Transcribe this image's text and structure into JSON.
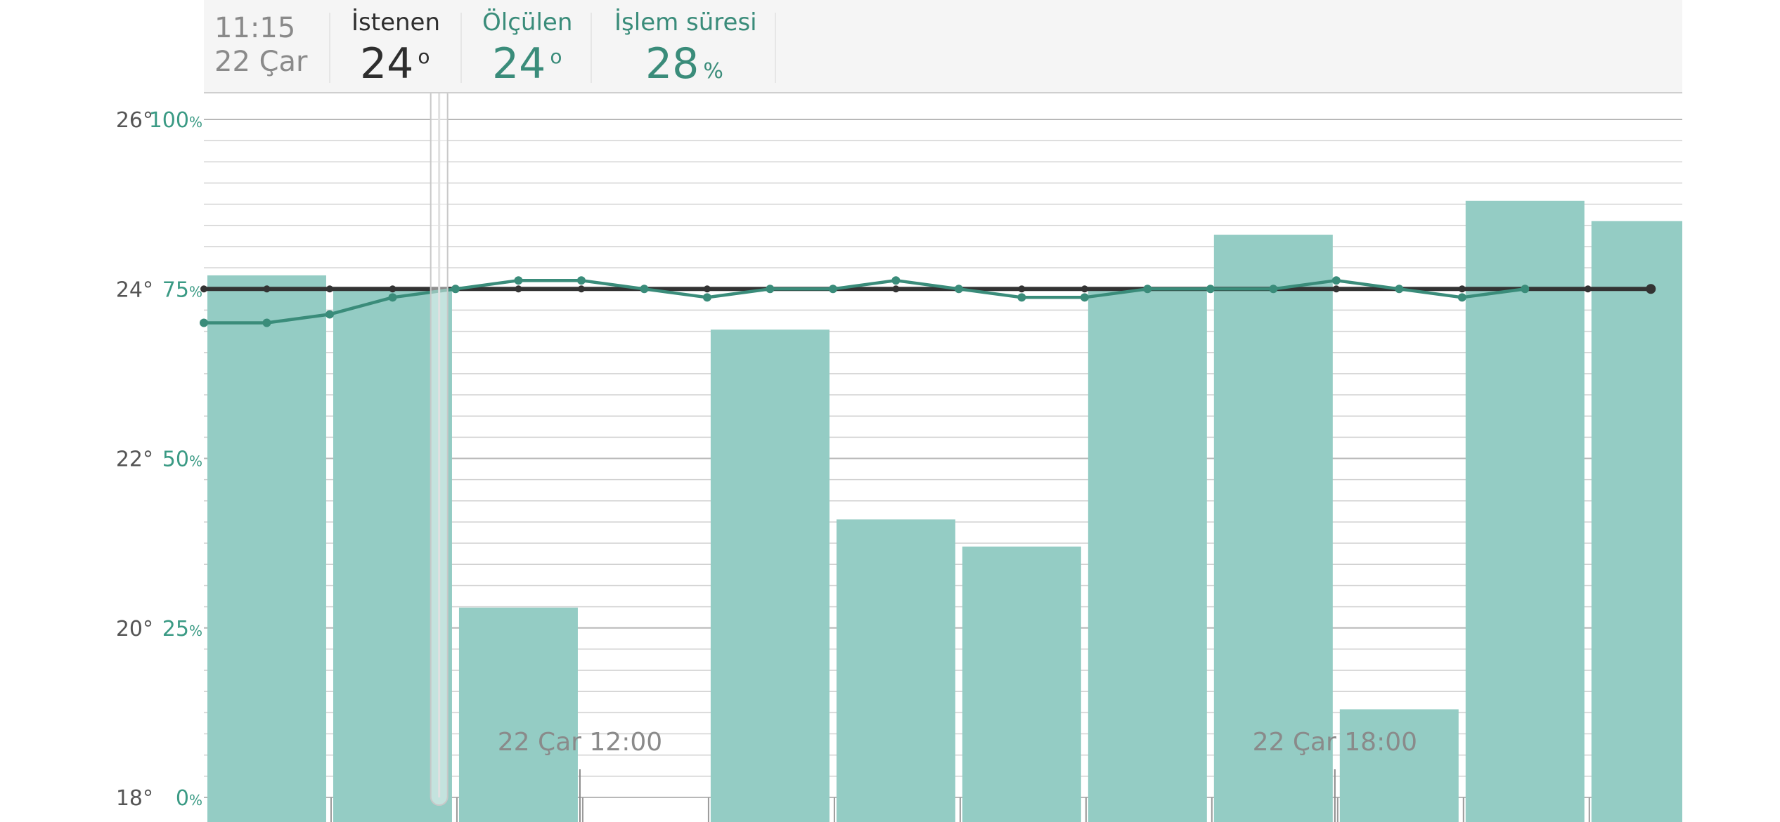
{
  "header": {
    "time": "11:15",
    "date": "22 Çar",
    "requested_label": "İstenen",
    "requested_value": "24",
    "requested_unit": "o",
    "measured_label": "Ölçülen",
    "measured_value": "24",
    "measured_unit": "o",
    "runtime_label": "İşlem süresi",
    "runtime_value": "28",
    "runtime_unit": "%"
  },
  "colors": {
    "bar": "#94ccc4",
    "measured_line": "#3a8c7a",
    "setpoint_line": "#333333",
    "percent_text": "#3a9a84",
    "temp_text": "#555555",
    "header_bg": "#f5f5f5"
  },
  "chart_data": {
    "type": "bar",
    "title": "",
    "y_temp_ticks": [
      "26°",
      "24°",
      "22°",
      "20°",
      "18°"
    ],
    "y_temp_values": [
      26,
      24,
      22,
      20,
      18
    ],
    "y_pct_ticks": [
      "100%",
      "75%",
      "50%",
      "25%",
      "0%"
    ],
    "y_pct_values": [
      100,
      75,
      50,
      25,
      0
    ],
    "y_temp_range": [
      18,
      26
    ],
    "y_pct_range": [
      0,
      100
    ],
    "x_labels": [
      "22 Çar 12:00",
      "22 Çar 18:00"
    ],
    "x_label_positions_hours": [
      12,
      18
    ],
    "x_range_hours": [
      9.0,
      20.75
    ],
    "grid": true,
    "bars": {
      "name": "İşlem süresi",
      "unit": "%",
      "start_hours": [
        9.0,
        10.0,
        11.0,
        12.0,
        13.0,
        14.0,
        15.0,
        16.0,
        17.0,
        18.0,
        19.0,
        20.0
      ],
      "values": [
        77,
        75,
        28,
        0,
        69,
        41,
        37,
        75,
        83,
        13,
        88,
        85
      ]
    },
    "measured": {
      "name": "Ölçülen",
      "unit": "°",
      "x_hours": [
        9.0,
        9.5,
        10.0,
        10.5,
        11.0,
        11.5,
        12.0,
        12.5,
        13.0,
        13.5,
        14.0,
        14.5,
        15.0,
        15.5,
        16.0,
        16.5,
        17.0,
        17.5,
        18.0,
        18.5,
        19.0,
        19.5
      ],
      "values": [
        23.6,
        23.6,
        23.7,
        23.9,
        24.0,
        24.1,
        24.1,
        24.0,
        23.9,
        24.0,
        24.0,
        24.1,
        24.0,
        23.9,
        23.9,
        24.0,
        24.0,
        24.0,
        24.1,
        24.0,
        23.9,
        24.0
      ]
    },
    "setpoint": {
      "name": "İstenen",
      "unit": "°",
      "x_hours": [
        9.0,
        9.5,
        10.0,
        10.5,
        11.0,
        11.5,
        12.0,
        12.5,
        13.0,
        13.5,
        14.0,
        14.5,
        15.0,
        15.5,
        16.0,
        16.5,
        17.0,
        17.5,
        18.0,
        18.5,
        19.0,
        19.5,
        20.0,
        20.5
      ],
      "values": [
        24,
        24,
        24,
        24,
        24,
        24,
        24,
        24,
        24,
        24,
        24,
        24,
        24,
        24,
        24,
        24,
        24,
        24,
        24,
        24,
        24,
        24,
        24,
        24
      ]
    },
    "cursor_hours": 10.87
  }
}
